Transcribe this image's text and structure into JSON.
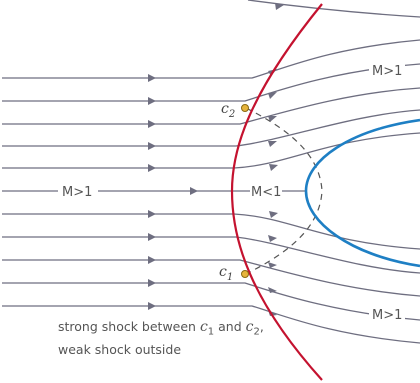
{
  "labels": {
    "upper_supersonic": "M>1",
    "lower_supersonic": "M>1",
    "freestream": "M>1",
    "subsonic": "M<1"
  },
  "points": {
    "c1": {
      "symbol": "c",
      "subscript": "1"
    },
    "c2": {
      "symbol": "c",
      "subscript": "2"
    }
  },
  "caption": {
    "part1": "strong shock between ",
    "c1_symbol": "c",
    "c1_subscript": "1",
    "part2": " and ",
    "c2_symbol": "c",
    "c2_subscript": "2",
    "part3": ", weak shock out­side"
  },
  "colors": {
    "shock": "#c4122f",
    "body": "#1e7fc4",
    "streamline": "#6e6e80",
    "sonic_line": "#555555",
    "point": "#e6b43c"
  }
}
